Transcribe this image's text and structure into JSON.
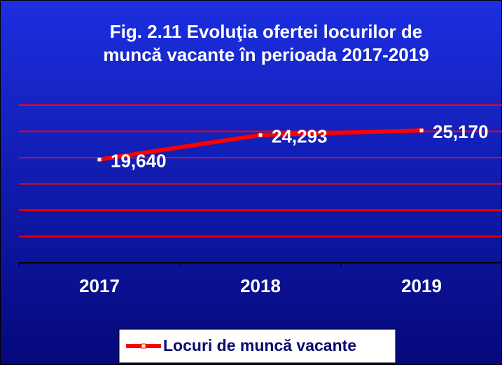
{
  "chart_data": {
    "type": "line",
    "title": [
      "Fig. 2.11 Evoluţia ofertei locurilor de",
      "muncă vacante în perioada 2017-2019"
    ],
    "categories": [
      "2017",
      "2018",
      "2019"
    ],
    "series": [
      {
        "name": "Locuri de muncă vacante",
        "color": "#ff0000",
        "values": [
          19640,
          24293,
          25170
        ],
        "value_labels": [
          "19,640",
          "24,293",
          "25,170"
        ]
      }
    ],
    "ylim": [
      0,
      30000
    ],
    "yticks": [
      0,
      5000,
      10000,
      15000,
      20000,
      25000,
      30000
    ],
    "grid": true,
    "legend": "bottom"
  }
}
